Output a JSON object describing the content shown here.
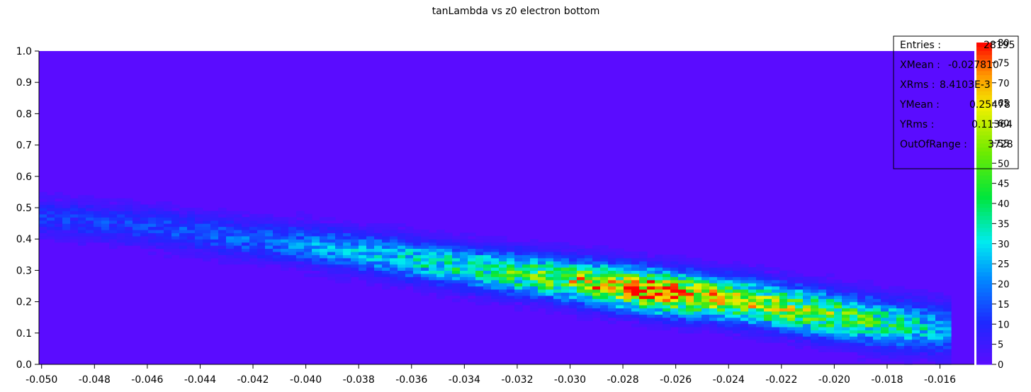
{
  "chart_data": {
    "type": "heatmap",
    "title": "tanLambda vs z0 electron bottom",
    "xlabel": "",
    "ylabel": "",
    "xlim": [
      -0.0501,
      -0.0147
    ],
    "ylim": [
      0.0,
      1.0
    ],
    "x_ticks": [
      "-0.050",
      "-0.048",
      "-0.046",
      "-0.044",
      "-0.042",
      "-0.040",
      "-0.038",
      "-0.036",
      "-0.034",
      "-0.032",
      "-0.030",
      "-0.028",
      "-0.026",
      "-0.024",
      "-0.022",
      "-0.020",
      "-0.018",
      "-0.016"
    ],
    "y_ticks": [
      "0.0",
      "0.1",
      "0.2",
      "0.3",
      "0.4",
      "0.5",
      "0.6",
      "0.7",
      "0.8",
      "0.9",
      "1.0"
    ],
    "colorbar": {
      "min": 0,
      "max": 80,
      "ticks": [
        "0",
        "5",
        "10",
        "15",
        "20",
        "25",
        "30",
        "35",
        "40",
        "45",
        "50",
        "55",
        "60",
        "65",
        "70",
        "75",
        "80"
      ]
    },
    "band": {
      "description_points_x": [
        -0.05,
        -0.046,
        -0.042,
        -0.038,
        -0.034,
        -0.03,
        -0.027,
        -0.024,
        -0.021,
        -0.018,
        -0.0155
      ],
      "center_y": [
        0.47,
        0.44,
        0.4,
        0.36,
        0.31,
        0.27,
        0.235,
        0.21,
        0.17,
        0.13,
        0.11
      ],
      "peak_count": [
        10,
        12,
        16,
        24,
        34,
        52,
        75,
        55,
        50,
        38,
        20
      ]
    },
    "stats": {
      "entries_label": "Entries :",
      "entries_value": "28195",
      "xmean_label": "XMean :",
      "xmean_value": "-0.027810",
      "xrms_label": "XRms :",
      "xrms_value": "8.4103E-3",
      "ymean_label": "YMean :",
      "ymean_value": "0.25478",
      "yrms_label": "YRms :",
      "yrms_value": "0.11364",
      "outofrange_label": "OutOfRange :",
      "outofrange_value": "3728"
    }
  }
}
